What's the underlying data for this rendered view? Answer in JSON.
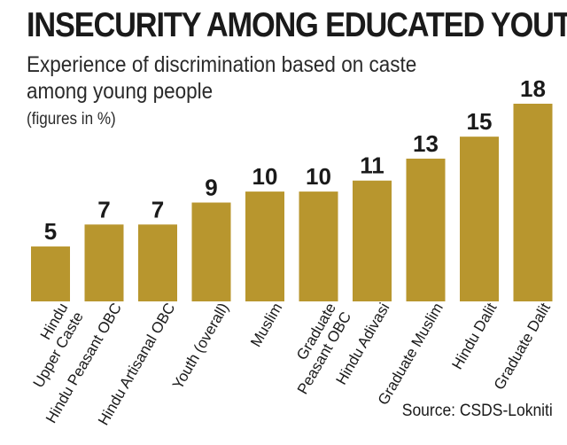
{
  "header": {
    "title": "INSECURITY AMONG EDUCATED YOUTH",
    "subtitle": "Experience of discrimination based on caste among young people",
    "note": "(figures in %)"
  },
  "footer": {
    "source": "Source: CSDS-Lokniti"
  },
  "colors": {
    "bar": "#b8962e",
    "text": "#1a1a1a"
  },
  "chart_data": {
    "type": "bar",
    "title": "INSECURITY AMONG EDUCATED YOUTH",
    "subtitle": "Experience of discrimination based on caste among young people",
    "unit": "(figures in %)",
    "categories": [
      [
        "Hindu",
        "Upper Caste"
      ],
      [
        "Hindu Peasant OBC"
      ],
      [
        "Hindu Artisanal  OBC"
      ],
      [
        "Youth (overall)"
      ],
      [
        "Muslim"
      ],
      [
        "Graduate",
        "Peasant OBC"
      ],
      [
        "Hindu Adivasi"
      ],
      [
        "Graduate Muslim"
      ],
      [
        "Hindu Dalit"
      ],
      [
        "Graduate Dalit"
      ]
    ],
    "values": [
      5,
      7,
      7,
      9,
      10,
      10,
      11,
      13,
      15,
      18
    ],
    "ylim": [
      0,
      18
    ],
    "grid": false,
    "legend": "none"
  }
}
